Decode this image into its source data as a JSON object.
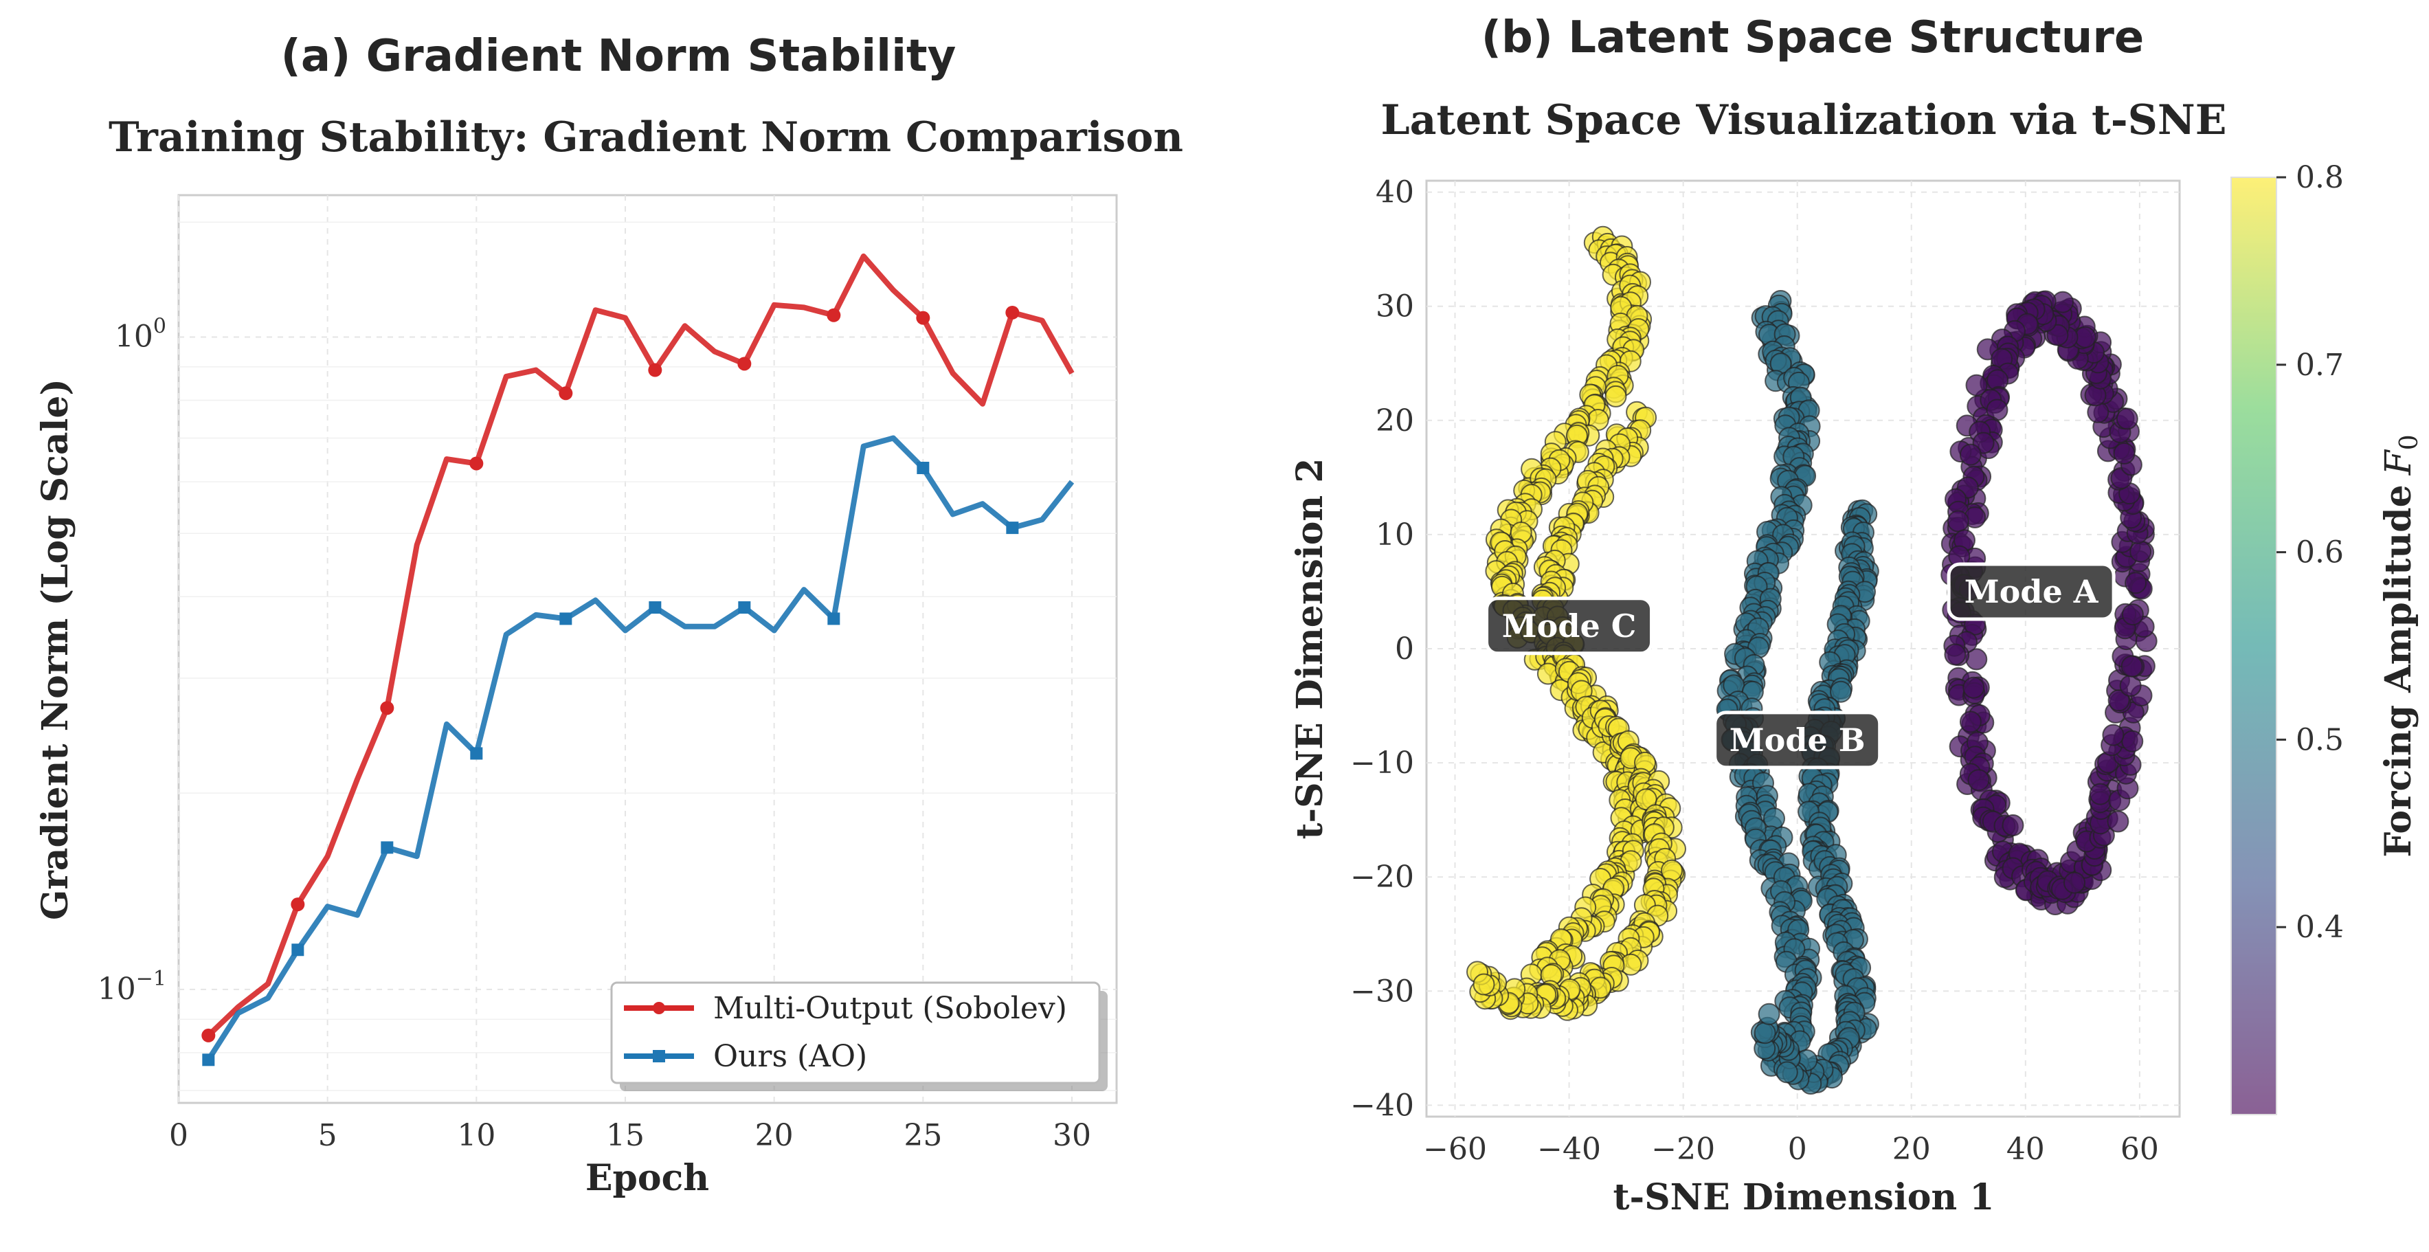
{
  "colors": {
    "multi_output": "#d62728",
    "ours": "#1f77b4",
    "mode_c": "#f6e635",
    "mode_b": "#2f6f86",
    "mode_a": "#45105e",
    "grid": "#e5e5e5",
    "annotation_bg": "#2b2b2b"
  },
  "chart_data": [
    {
      "type": "line",
      "panel_label": "(a) Gradient Norm Stability",
      "title": "Training Stability: Gradient Norm Comparison",
      "xlabel": "Epoch",
      "ylabel": "Gradient Norm (Log Scale)",
      "yscale": "log",
      "xlim": [
        0,
        31.5
      ],
      "ylim": [
        0.067,
        1.65
      ],
      "x_ticks": [
        0,
        5,
        10,
        15,
        20,
        25,
        30
      ],
      "y_ticks": [
        {
          "value": 1.0,
          "base": "10",
          "exp": "0"
        },
        {
          "value": 0.1,
          "base": "10",
          "exp": "−1"
        }
      ],
      "legend_position": "lower right",
      "x": [
        1,
        2,
        3,
        4,
        5,
        6,
        7,
        8,
        9,
        10,
        11,
        12,
        13,
        14,
        15,
        16,
        17,
        18,
        19,
        20,
        21,
        22,
        23,
        24,
        25,
        26,
        27,
        28,
        29,
        30
      ],
      "series": [
        {
          "name": "Multi-Output (Sobolev)",
          "color_key": "multi_output",
          "marker": "circle",
          "marker_every": 3,
          "values": [
            0.085,
            0.094,
            0.102,
            0.135,
            0.16,
            0.21,
            0.27,
            0.48,
            0.65,
            0.64,
            0.87,
            0.89,
            0.82,
            1.1,
            1.07,
            0.89,
            1.04,
            0.95,
            0.91,
            1.12,
            1.11,
            1.08,
            1.33,
            1.18,
            1.07,
            0.88,
            0.79,
            1.09,
            1.06,
            0.88
          ]
        },
        {
          "name": "Ours (AO)",
          "color_key": "ours",
          "marker": "square",
          "marker_every": 3,
          "values": [
            0.078,
            0.092,
            0.097,
            0.115,
            0.134,
            0.13,
            0.165,
            0.16,
            0.255,
            0.23,
            0.35,
            0.375,
            0.37,
            0.395,
            0.355,
            0.385,
            0.36,
            0.36,
            0.385,
            0.355,
            0.41,
            0.37,
            0.68,
            0.7,
            0.63,
            0.535,
            0.555,
            0.51,
            0.525,
            0.6
          ]
        }
      ]
    },
    {
      "type": "scatter",
      "panel_label": "(b) Latent Space Structure",
      "title": "Latent Space Visualization via t-SNE",
      "xlabel": "t-SNE Dimension 1",
      "ylabel": "t-SNE Dimension 2",
      "xlim": [
        -65,
        67
      ],
      "ylim": [
        -41,
        41
      ],
      "x_ticks": [
        -60,
        -40,
        -20,
        0,
        20,
        40,
        60
      ],
      "y_ticks": [
        -40,
        -30,
        -20,
        -10,
        0,
        10,
        20,
        30,
        40
      ],
      "colorbar": {
        "label": "Forcing Amplitude",
        "label_symbol": "F",
        "label_subscript": "0",
        "range": [
          0.3,
          0.8
        ],
        "ticks": [
          0.4,
          0.5,
          0.6,
          0.7,
          0.8
        ],
        "colormap": "viridis"
      },
      "clusters": [
        {
          "name": "Mode A",
          "forcing_amplitude": 0.3,
          "color_key": "mode_a",
          "center": [
            44,
            4
          ],
          "shape": "ellipse",
          "half_width": 15,
          "half_height": 25,
          "label_at": [
            41,
            5
          ]
        },
        {
          "name": "Mode B",
          "forcing_amplitude": 0.5,
          "color_key": "mode_b",
          "center": [
            1,
            -4
          ],
          "shape": "double_band",
          "spread_x": 11,
          "y_range": [
            -37,
            30
          ],
          "label_at": [
            0,
            -8
          ]
        },
        {
          "name": "Mode C",
          "forcing_amplitude": 0.8,
          "color_key": "mode_c",
          "center": [
            -40,
            3
          ],
          "shape": "figure_eight",
          "spread_x": 13,
          "y_range": [
            -30,
            36
          ],
          "label_at": [
            -40,
            2
          ]
        }
      ]
    }
  ]
}
